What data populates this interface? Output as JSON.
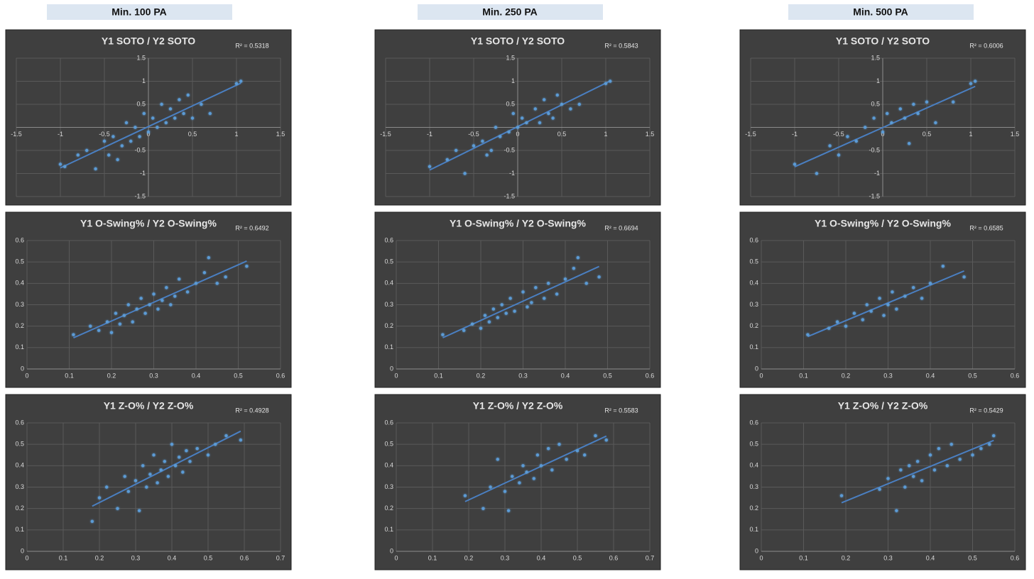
{
  "headers": [
    "Min. 100 PA",
    "Min. 250 PA",
    "Min. 500 PA"
  ],
  "chart_data": [
    {
      "type": "scatter",
      "axes": "origin",
      "title": "Y1 SOTO / Y2 SOTO",
      "annotation": "R² = 0.5318",
      "color": "#5b9bd5",
      "trendline": true,
      "grid": true,
      "xlim": [
        -1.5,
        1.5
      ],
      "ylim": [
        -1.5,
        1.5
      ],
      "xticks": [
        -1.5,
        -1,
        -0.5,
        0,
        0.5,
        1,
        1.5
      ],
      "yticks": [
        -1.5,
        -1,
        -0.5,
        0.5,
        1,
        1.5
      ],
      "x": [
        -1.0,
        -0.95,
        -0.8,
        -0.7,
        -0.6,
        -0.5,
        -0.45,
        -0.4,
        -0.3,
        -0.25,
        -0.2,
        -0.15,
        -0.1,
        -0.05,
        0,
        0.05,
        0.1,
        0.15,
        0.2,
        0.25,
        0.3,
        0.35,
        0.4,
        0.5,
        0.6,
        0.7,
        1.0,
        1.05,
        -0.35,
        0.45
      ],
      "values": [
        -0.8,
        -0.85,
        -0.6,
        -0.5,
        -0.9,
        -0.3,
        -0.6,
        -0.2,
        -0.4,
        0.1,
        -0.3,
        0.0,
        -0.2,
        0.3,
        -0.1,
        0.2,
        0.0,
        0.5,
        0.1,
        0.4,
        0.2,
        0.6,
        0.3,
        0.2,
        0.5,
        0.3,
        0.95,
        1.0,
        -0.7,
        0.7
      ]
    },
    {
      "type": "scatter",
      "axes": "origin",
      "title": "Y1 SOTO / Y2 SOTO",
      "annotation": "R² = 0.5843",
      "color": "#5b9bd5",
      "trendline": true,
      "grid": true,
      "xlim": [
        -1.5,
        1.5
      ],
      "ylim": [
        -1.5,
        1.5
      ],
      "xticks": [
        -1.5,
        -1,
        -0.5,
        0,
        0.5,
        1,
        1.5
      ],
      "yticks": [
        -1.5,
        -1,
        -0.5,
        0.5,
        1,
        1.5
      ],
      "x": [
        -1.0,
        -0.8,
        -0.7,
        -0.6,
        -0.5,
        -0.4,
        -0.3,
        -0.25,
        -0.2,
        -0.1,
        -0.05,
        0,
        0.05,
        0.1,
        0.2,
        0.25,
        0.3,
        0.35,
        0.4,
        0.5,
        0.6,
        0.7,
        1.0,
        1.05,
        -0.35,
        0.45
      ],
      "values": [
        -0.85,
        -0.7,
        -0.5,
        -1.0,
        -0.4,
        -0.3,
        -0.5,
        0.0,
        -0.2,
        -0.1,
        0.3,
        0.0,
        0.2,
        0.1,
        0.4,
        0.1,
        0.6,
        0.3,
        0.2,
        0.5,
        0.4,
        0.5,
        0.95,
        1.0,
        -0.6,
        0.7
      ]
    },
    {
      "type": "scatter",
      "axes": "origin",
      "title": "Y1 SOTO / Y2 SOTO",
      "annotation": "R² = 0.6006",
      "color": "#5b9bd5",
      "trendline": true,
      "grid": true,
      "xlim": [
        -1.5,
        1.5
      ],
      "ylim": [
        -1.5,
        1.5
      ],
      "xticks": [
        -1.5,
        -1,
        -0.5,
        0,
        0.5,
        1,
        1.5
      ],
      "yticks": [
        -1.5,
        -1,
        -0.5,
        0.5,
        1,
        1.5
      ],
      "x": [
        -1.0,
        -0.75,
        -0.6,
        -0.5,
        -0.4,
        -0.3,
        -0.2,
        -0.1,
        0,
        0.05,
        0.1,
        0.2,
        0.25,
        0.3,
        0.35,
        0.4,
        0.5,
        0.6,
        0.8,
        1.0,
        1.05
      ],
      "values": [
        -0.8,
        -1.0,
        -0.4,
        -0.6,
        -0.2,
        -0.3,
        0.0,
        0.2,
        -0.1,
        0.3,
        0.1,
        0.4,
        0.2,
        -0.35,
        0.5,
        0.3,
        0.55,
        0.1,
        0.55,
        0.95,
        1.0
      ]
    },
    {
      "type": "scatter",
      "axes": "box",
      "title": "Y1 O-Swing% / Y2 O-Swing%",
      "annotation": "R² = 0.6492",
      "color": "#5b9bd5",
      "trendline": true,
      "grid": true,
      "xlim": [
        0,
        0.6
      ],
      "ylim": [
        0,
        0.6
      ],
      "xticks": [
        0,
        0.1,
        0.2,
        0.3,
        0.4,
        0.5,
        0.6
      ],
      "yticks": [
        0,
        0.1,
        0.2,
        0.3,
        0.4,
        0.5,
        0.6
      ],
      "x": [
        0.11,
        0.15,
        0.17,
        0.19,
        0.2,
        0.21,
        0.22,
        0.23,
        0.24,
        0.25,
        0.26,
        0.27,
        0.28,
        0.29,
        0.3,
        0.31,
        0.32,
        0.33,
        0.34,
        0.35,
        0.36,
        0.38,
        0.4,
        0.42,
        0.43,
        0.45,
        0.47,
        0.52
      ],
      "values": [
        0.16,
        0.2,
        0.18,
        0.22,
        0.17,
        0.26,
        0.21,
        0.25,
        0.3,
        0.22,
        0.28,
        0.33,
        0.26,
        0.3,
        0.35,
        0.28,
        0.32,
        0.38,
        0.3,
        0.34,
        0.42,
        0.36,
        0.4,
        0.45,
        0.52,
        0.4,
        0.43,
        0.48
      ]
    },
    {
      "type": "scatter",
      "axes": "box",
      "title": "Y1 O-Swing% / Y2 O-Swing%",
      "annotation": "R² = 0.6694",
      "color": "#5b9bd5",
      "trendline": true,
      "grid": true,
      "xlim": [
        0,
        0.6
      ],
      "ylim": [
        0,
        0.6
      ],
      "xticks": [
        0,
        0.1,
        0.2,
        0.3,
        0.4,
        0.5,
        0.6
      ],
      "yticks": [
        0,
        0.1,
        0.2,
        0.3,
        0.4,
        0.5,
        0.6
      ],
      "x": [
        0.11,
        0.16,
        0.18,
        0.2,
        0.21,
        0.22,
        0.23,
        0.24,
        0.25,
        0.26,
        0.27,
        0.28,
        0.3,
        0.31,
        0.32,
        0.33,
        0.35,
        0.36,
        0.38,
        0.4,
        0.42,
        0.43,
        0.45,
        0.48
      ],
      "values": [
        0.16,
        0.18,
        0.21,
        0.19,
        0.25,
        0.22,
        0.28,
        0.24,
        0.3,
        0.26,
        0.33,
        0.27,
        0.36,
        0.29,
        0.31,
        0.38,
        0.33,
        0.4,
        0.35,
        0.42,
        0.47,
        0.52,
        0.4,
        0.43
      ]
    },
    {
      "type": "scatter",
      "axes": "box",
      "title": "Y1 O-Swing% / Y2 O-Swing%",
      "annotation": "R² = 0.6585",
      "color": "#5b9bd5",
      "trendline": true,
      "grid": true,
      "xlim": [
        0,
        0.6
      ],
      "ylim": [
        0,
        0.6
      ],
      "xticks": [
        0,
        0.1,
        0.2,
        0.3,
        0.4,
        0.5,
        0.6
      ],
      "yticks": [
        0,
        0.1,
        0.2,
        0.3,
        0.4,
        0.5,
        0.6
      ],
      "x": [
        0.11,
        0.16,
        0.18,
        0.2,
        0.22,
        0.24,
        0.25,
        0.26,
        0.28,
        0.29,
        0.3,
        0.31,
        0.32,
        0.34,
        0.36,
        0.38,
        0.4,
        0.43,
        0.48
      ],
      "values": [
        0.16,
        0.19,
        0.22,
        0.2,
        0.26,
        0.23,
        0.3,
        0.27,
        0.33,
        0.25,
        0.3,
        0.36,
        0.28,
        0.34,
        0.38,
        0.33,
        0.4,
        0.48,
        0.43
      ]
    },
    {
      "type": "scatter",
      "axes": "box",
      "title": "Y1 Z-O% / Y2 Z-O%",
      "annotation": "R² = 0.4928",
      "color": "#5b9bd5",
      "trendline": true,
      "grid": true,
      "xlim": [
        0,
        0.7
      ],
      "ylim": [
        0,
        0.6
      ],
      "xticks": [
        0,
        0.1,
        0.2,
        0.3,
        0.4,
        0.5,
        0.6,
        0.7
      ],
      "yticks": [
        0,
        0.1,
        0.2,
        0.3,
        0.4,
        0.5,
        0.6
      ],
      "x": [
        0.18,
        0.2,
        0.22,
        0.25,
        0.27,
        0.28,
        0.3,
        0.31,
        0.32,
        0.33,
        0.34,
        0.35,
        0.36,
        0.37,
        0.38,
        0.39,
        0.4,
        0.41,
        0.42,
        0.43,
        0.44,
        0.45,
        0.47,
        0.5,
        0.52,
        0.55,
        0.59
      ],
      "values": [
        0.14,
        0.25,
        0.3,
        0.2,
        0.35,
        0.28,
        0.33,
        0.19,
        0.4,
        0.3,
        0.36,
        0.45,
        0.32,
        0.38,
        0.42,
        0.35,
        0.5,
        0.4,
        0.44,
        0.37,
        0.47,
        0.42,
        0.48,
        0.45,
        0.5,
        0.54,
        0.52
      ]
    },
    {
      "type": "scatter",
      "axes": "box",
      "title": "Y1 Z-O% / Y2 Z-O%",
      "annotation": "R² = 0.5583",
      "color": "#5b9bd5",
      "trendline": true,
      "grid": true,
      "xlim": [
        0,
        0.7
      ],
      "ylim": [
        0,
        0.6
      ],
      "xticks": [
        0,
        0.1,
        0.2,
        0.3,
        0.4,
        0.5,
        0.6,
        0.7
      ],
      "yticks": [
        0,
        0.1,
        0.2,
        0.3,
        0.4,
        0.5,
        0.6
      ],
      "x": [
        0.19,
        0.24,
        0.26,
        0.28,
        0.3,
        0.31,
        0.32,
        0.34,
        0.35,
        0.36,
        0.38,
        0.39,
        0.4,
        0.42,
        0.43,
        0.45,
        0.47,
        0.5,
        0.52,
        0.55,
        0.58
      ],
      "values": [
        0.26,
        0.2,
        0.3,
        0.43,
        0.28,
        0.19,
        0.35,
        0.32,
        0.4,
        0.37,
        0.34,
        0.45,
        0.4,
        0.48,
        0.38,
        0.5,
        0.43,
        0.47,
        0.45,
        0.54,
        0.52
      ]
    },
    {
      "type": "scatter",
      "axes": "box",
      "title": "Y1 Z-O% / Y2 Z-O%",
      "annotation": "R² = 0.5429",
      "color": "#5b9bd5",
      "trendline": true,
      "grid": true,
      "xlim": [
        0,
        0.6
      ],
      "ylim": [
        0,
        0.6
      ],
      "xticks": [
        0,
        0.1,
        0.2,
        0.3,
        0.4,
        0.5,
        0.6
      ],
      "yticks": [
        0,
        0.1,
        0.2,
        0.3,
        0.4,
        0.5,
        0.6
      ],
      "x": [
        0.19,
        0.28,
        0.3,
        0.32,
        0.33,
        0.34,
        0.35,
        0.36,
        0.37,
        0.38,
        0.4,
        0.41,
        0.42,
        0.44,
        0.45,
        0.47,
        0.5,
        0.52,
        0.54,
        0.55
      ],
      "values": [
        0.26,
        0.29,
        0.34,
        0.19,
        0.38,
        0.3,
        0.4,
        0.35,
        0.42,
        0.33,
        0.45,
        0.38,
        0.48,
        0.4,
        0.5,
        0.43,
        0.45,
        0.48,
        0.5,
        0.54
      ]
    }
  ]
}
